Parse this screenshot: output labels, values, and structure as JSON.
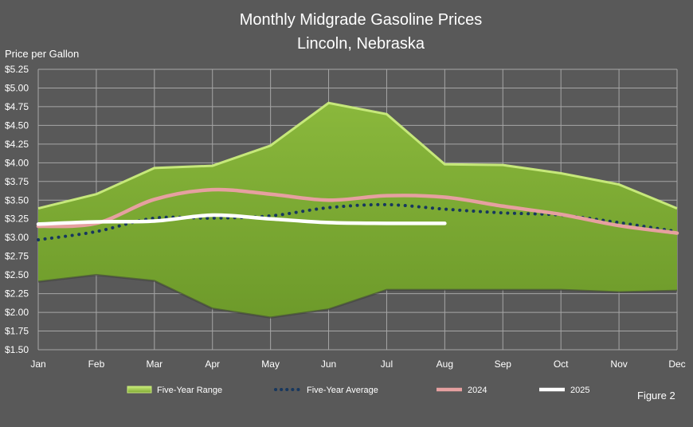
{
  "chart_data": {
    "type": "area",
    "title_lines": [
      "Monthly Midgrade Gasoline Prices",
      "Lincoln, Nebraska"
    ],
    "ylabel": "Price per Gallon",
    "xlabel": "",
    "categories": [
      "Jan",
      "Feb",
      "Mar",
      "Apr",
      "May",
      "Jun",
      "Jul",
      "Aug",
      "Sep",
      "Oct",
      "Nov",
      "Dec"
    ],
    "ylim": [
      1.5,
      5.25
    ],
    "yticks": [
      "$1.50",
      "$1.75",
      "$2.00",
      "$2.25",
      "$2.50",
      "$2.75",
      "$3.00",
      "$3.25",
      "$3.50",
      "$3.75",
      "$4.00",
      "$4.25",
      "$4.50",
      "$4.75",
      "$5.00",
      "$5.25"
    ],
    "grid": true,
    "legend_position": "bottom",
    "series": [
      {
        "name": "Five-Year Range",
        "kind": "range",
        "high": [
          3.39,
          3.58,
          3.93,
          3.96,
          4.23,
          4.8,
          4.65,
          3.98,
          3.97,
          3.86,
          3.71,
          3.39
        ],
        "low": [
          2.41,
          2.5,
          2.42,
          2.05,
          1.93,
          2.04,
          2.3,
          2.3,
          2.3,
          2.3,
          2.27,
          2.29
        ],
        "color": "#7fa832"
      },
      {
        "name": "Five-Year Average",
        "kind": "dotted",
        "values": [
          2.97,
          3.08,
          3.26,
          3.26,
          3.29,
          3.4,
          3.44,
          3.38,
          3.33,
          3.3,
          3.2,
          3.08
        ],
        "color": "#17375e"
      },
      {
        "name": "2024",
        "kind": "line",
        "values": [
          3.15,
          3.19,
          3.51,
          3.64,
          3.58,
          3.5,
          3.56,
          3.54,
          3.42,
          3.31,
          3.16,
          3.06
        ],
        "color": "#e6a0a0"
      },
      {
        "name": "2025",
        "kind": "line",
        "values": [
          3.18,
          3.21,
          3.22,
          3.3,
          3.25,
          3.2,
          3.19,
          3.19,
          null,
          null,
          null,
          null
        ],
        "color": "#ffffff"
      }
    ]
  },
  "figure_label": "Figure 2"
}
